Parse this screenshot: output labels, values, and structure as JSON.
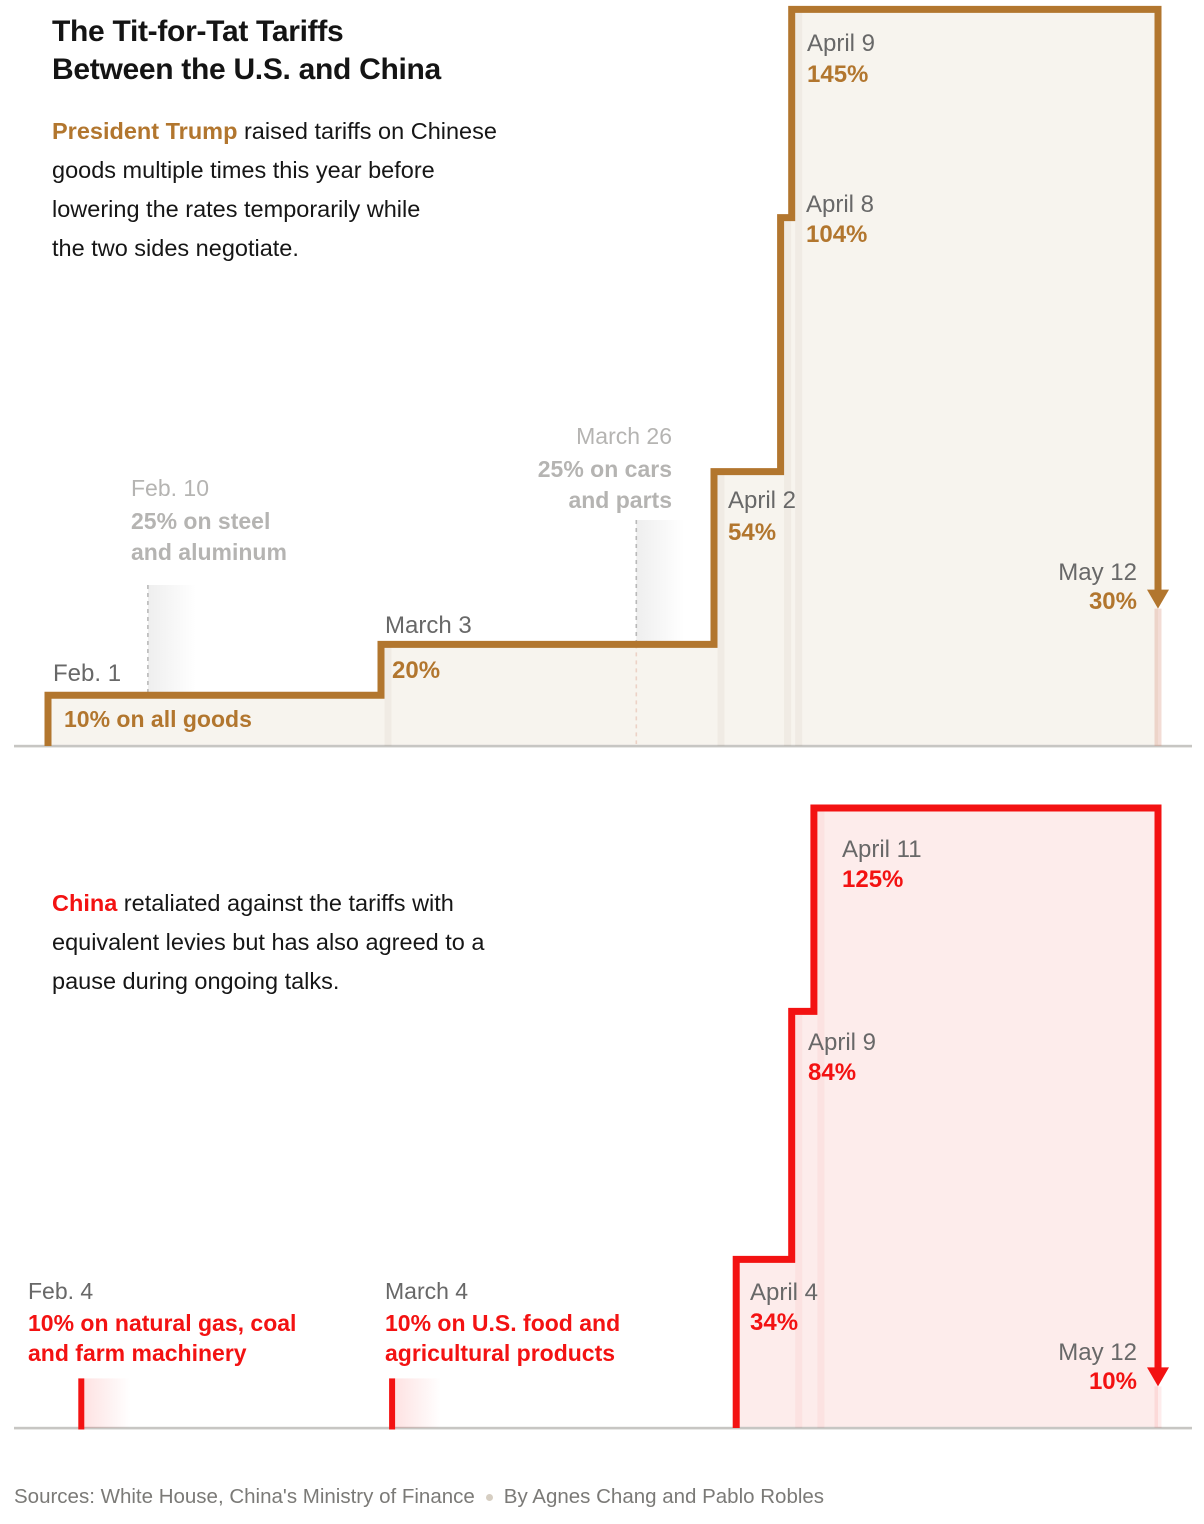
{
  "header": {
    "title": "The Tit-for-Tat Tariffs\nBetween the U.S. and China"
  },
  "us_section": {
    "lead": "President Trump",
    "text": " raised tariffs on Chinese\ngoods multiple times this year before\nlowering the rates temporarily while\nthe two sides negotiate."
  },
  "china_section": {
    "lead": "China",
    "text": " retaliated against the tariffs with\nequivalent levies but has also agreed to a\npause during ongoing talks."
  },
  "footer": {
    "sources": "Sources: White House, China's Ministry of Finance",
    "byline": "By Agnes Chang and Pablo Robles"
  },
  "us_labels": {
    "feb1": {
      "date": "Feb. 1",
      "value": "10% on all goods"
    },
    "march3": {
      "date": "March 3",
      "value": "20%"
    },
    "feb10": {
      "date": "Feb. 10",
      "desc": "25% on steel\nand aluminum"
    },
    "march26": {
      "date": "March 26",
      "desc": "25% on cars\nand parts"
    },
    "april2": {
      "date": "April 2",
      "value": "54%"
    },
    "april8": {
      "date": "April 8",
      "value": "104%"
    },
    "april9": {
      "date": "April 9",
      "value": "145%"
    },
    "may12": {
      "date": "May 12",
      "value": "30%"
    }
  },
  "china_labels": {
    "feb4": {
      "date": "Feb. 4",
      "desc": "10% on natural gas, coal\nand farm machinery"
    },
    "march4": {
      "date": "March 4",
      "desc": "10% on U.S. food and\nagricultural products"
    },
    "april4": {
      "date": "April 4",
      "value": "34%"
    },
    "april9": {
      "date": "April 9",
      "value": "84%"
    },
    "april11": {
      "date": "April 11",
      "value": "125%"
    },
    "may12": {
      "date": "May 12",
      "value": "10%"
    }
  },
  "chart_data": [
    {
      "id": "us",
      "type": "step-area",
      "entity": "United States tariffs on Chinese goods",
      "unit": "tariff rate, percent",
      "x_axis": "date (day 0 = Feb. 1)",
      "y_range": [
        0,
        145
      ],
      "line_color": "#b2762e",
      "area_color": "#f7f4ee",
      "steps": [
        {
          "date": "Feb. 1",
          "day": 0,
          "pct": 10
        },
        {
          "date": "March 3",
          "day": 30,
          "pct": 20
        },
        {
          "date": "April 2",
          "day": 60,
          "pct": 54
        },
        {
          "date": "April 8",
          "day": 66,
          "pct": 104
        },
        {
          "date": "April 9",
          "day": 67,
          "pct": 145
        }
      ],
      "drop": {
        "date": "May 12",
        "day": 100,
        "pct": 30
      },
      "events": [
        {
          "date": "Feb. 10",
          "day": 9,
          "style": "dashed",
          "desc": "25% on steel and aluminum"
        },
        {
          "date": "March 26",
          "day": 53,
          "style": "dashed",
          "desc": "25% on cars and parts"
        }
      ]
    },
    {
      "id": "china",
      "type": "step-area",
      "entity": "China tariffs on U.S. goods",
      "unit": "tariff rate, percent",
      "x_axis": "date (day 0 = Feb. 1)",
      "y_range": [
        0,
        125
      ],
      "line_color": "#f31212",
      "area_color": "#fdeceb",
      "steps": [
        {
          "date": "April 4",
          "day": 62,
          "pct": 34
        },
        {
          "date": "April 9",
          "day": 67,
          "pct": 84
        },
        {
          "date": "April 11",
          "day": 69,
          "pct": 125
        }
      ],
      "drop": {
        "date": "May 12",
        "day": 100,
        "pct": 10
      },
      "events": [
        {
          "date": "Feb. 4",
          "day": 3,
          "style": "tick",
          "pct": 10,
          "desc": "10% on natural gas, coal and farm machinery"
        },
        {
          "date": "March 4",
          "day": 31,
          "style": "tick",
          "pct": 10,
          "desc": "10% on U.S. food and agricultural products"
        }
      ]
    }
  ]
}
